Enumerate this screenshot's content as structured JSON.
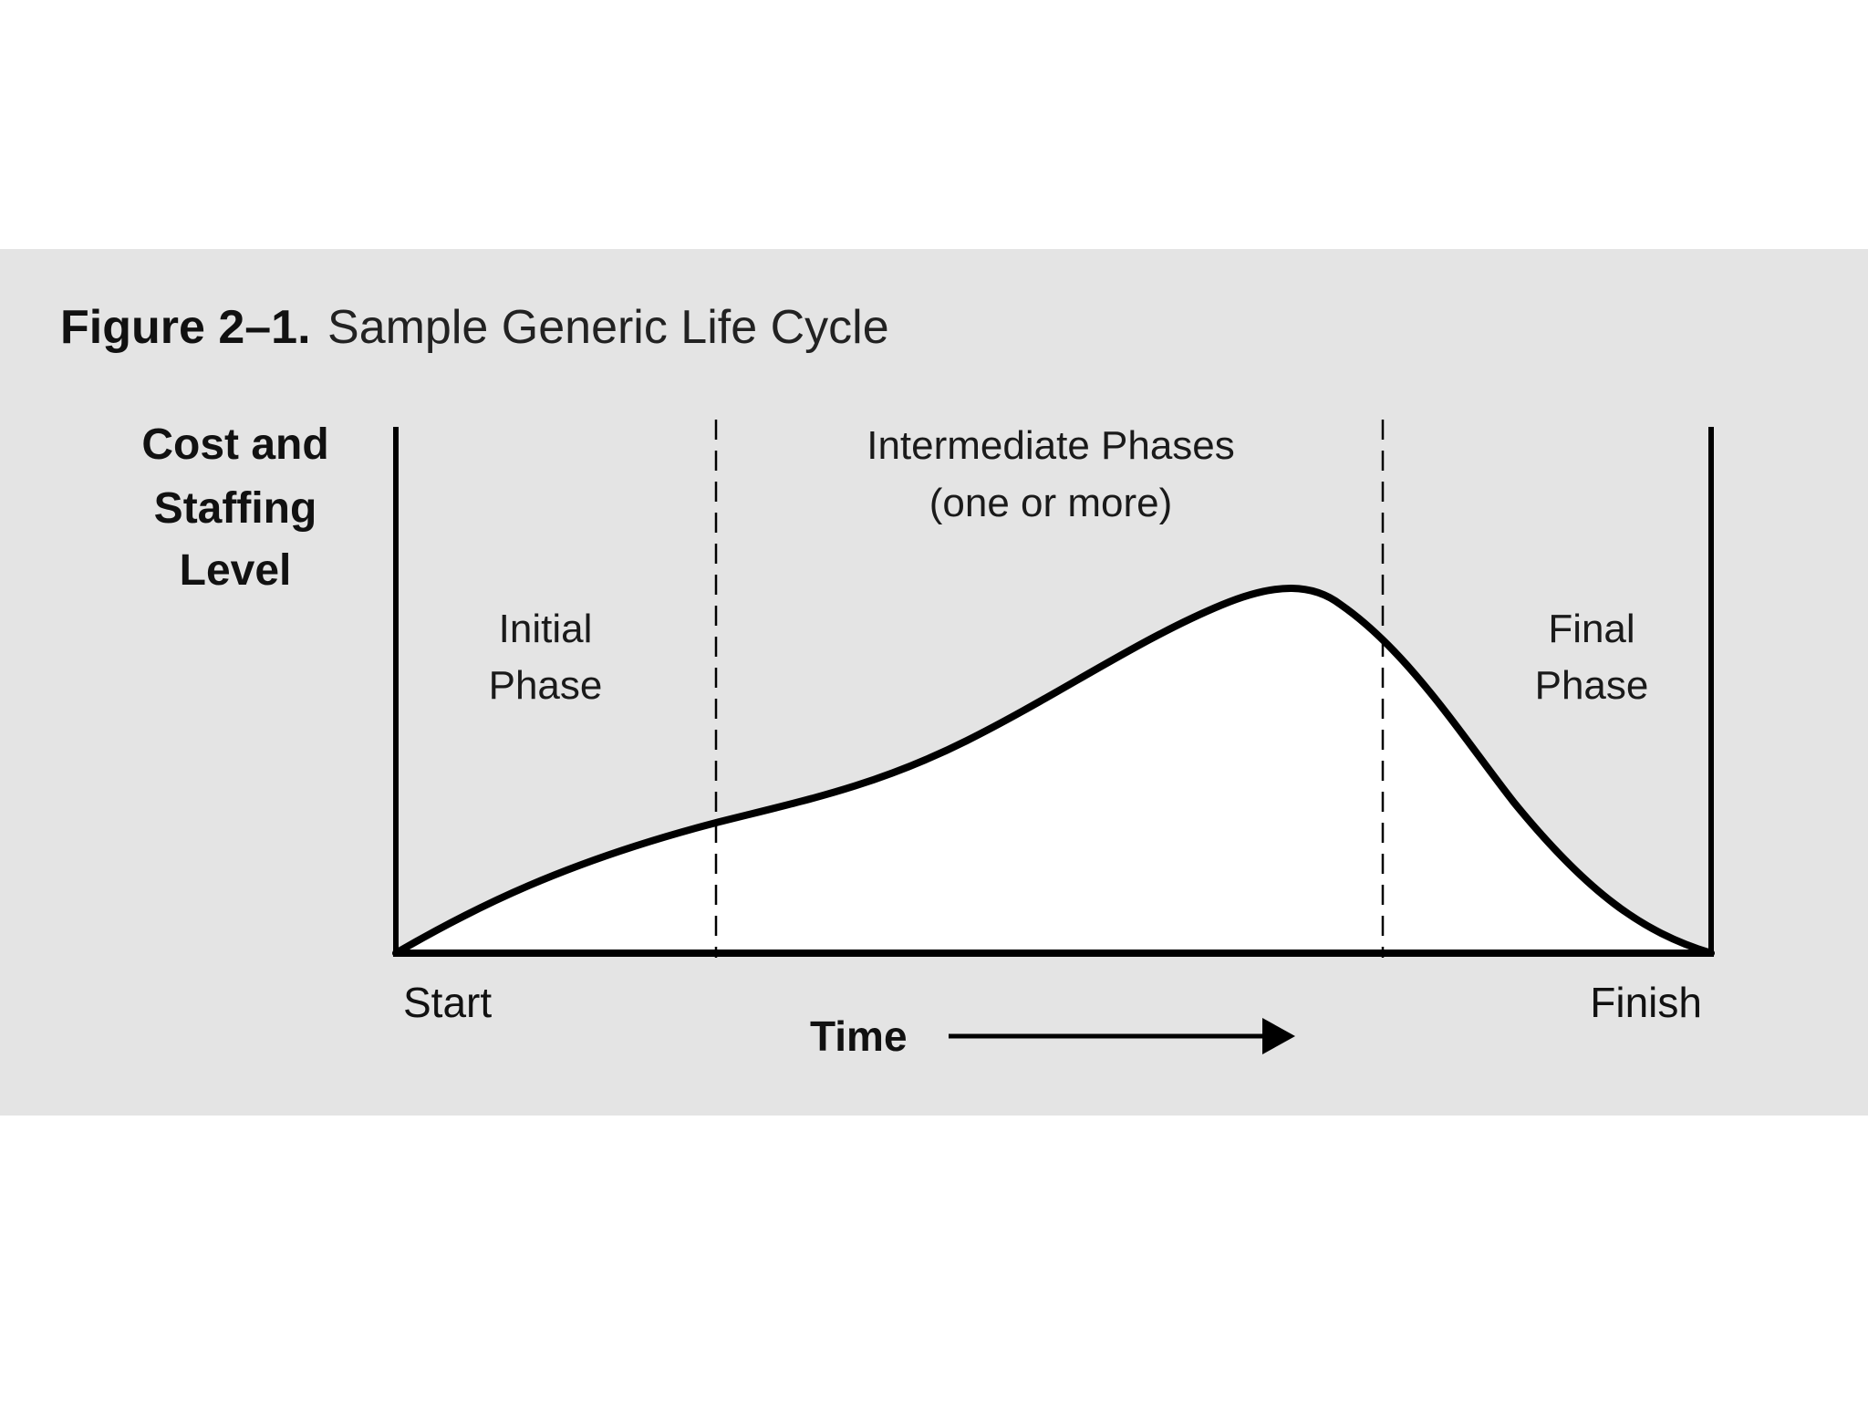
{
  "figure": {
    "number": "Figure 2–1.",
    "title": "Sample Generic Life Cycle"
  },
  "y_axis": {
    "label_lines": [
      "Cost and",
      "Staffing",
      "Level"
    ]
  },
  "x_axis": {
    "start": "Start",
    "finish": "Finish",
    "label": "Time"
  },
  "phases": {
    "initial": [
      "Initial",
      "Phase"
    ],
    "intermediate": [
      "Intermediate Phases",
      "(one or more)"
    ],
    "final": [
      "Final",
      "Phase"
    ]
  },
  "colors": {
    "panel_background": "#e4e4e4",
    "curve_fill": "#ffffff",
    "line": "#000000"
  }
}
